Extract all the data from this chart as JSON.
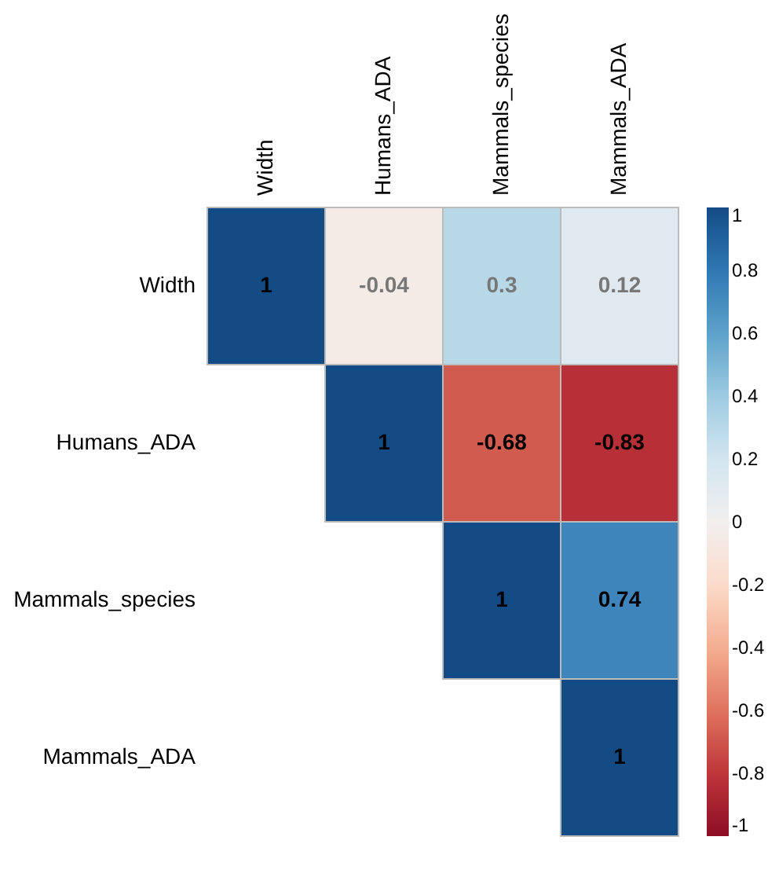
{
  "chart_data": {
    "type": "heatmap",
    "categories": [
      "Width",
      "Humans_ADA",
      "Mammals_species",
      "Mammals_ADA"
    ],
    "y_categories": [
      "Width",
      "Humans_ADA",
      "Mammals_species",
      "Mammals_ADA"
    ],
    "cells": [
      [
        1,
        -0.04,
        0.3,
        0.12
      ],
      [
        null,
        1,
        -0.68,
        -0.83
      ],
      [
        null,
        null,
        1,
        0.74
      ],
      [
        null,
        null,
        null,
        1
      ]
    ],
    "cell_labels": [
      [
        "1",
        "-0.04",
        "0.3",
        "0.12"
      ],
      [
        null,
        "1",
        "-0.68",
        "-0.83"
      ],
      [
        null,
        null,
        "1",
        "0.74"
      ],
      [
        null,
        null,
        null,
        "1"
      ]
    ],
    "clim": [
      -1,
      1
    ],
    "cticks": [
      -1,
      -0.8,
      -0.6,
      -0.4,
      -0.2,
      0,
      0.2,
      0.4,
      0.6,
      0.8,
      1
    ]
  }
}
